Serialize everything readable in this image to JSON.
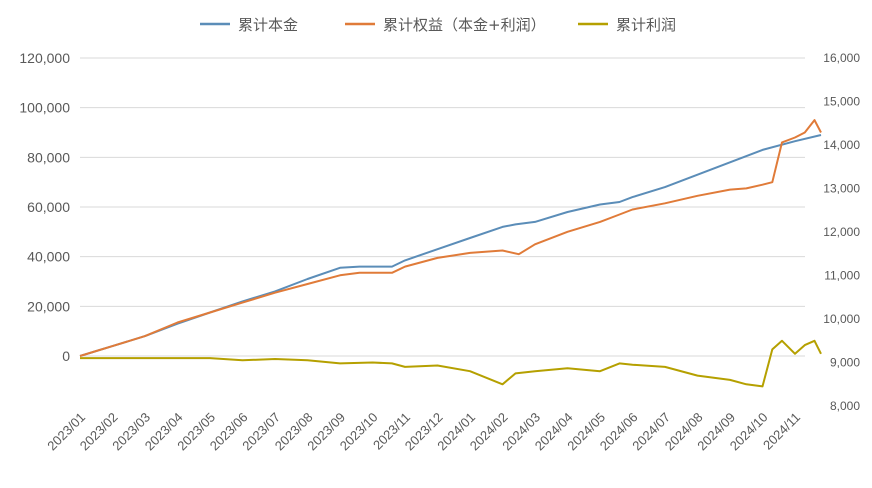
{
  "chart_data": {
    "type": "line",
    "title": "",
    "xlabel": "",
    "ylabel": "",
    "legend_position": "top",
    "grid": "horizontal",
    "x": [
      "2023/01",
      "2023/02",
      "2023/03",
      "2023/04",
      "2023/05",
      "2023/06",
      "2023/07",
      "2023/08",
      "2023/09",
      "2023/10",
      "2023/11",
      "2023/12",
      "2024/01",
      "2024/02",
      "2024/03",
      "2024/04",
      "2024/05",
      "2024/06",
      "2024/07",
      "2024/08",
      "2024/09",
      "2024/10",
      "2024/11"
    ],
    "y_left": {
      "min": 0,
      "max": 120000,
      "ticks": [
        "0",
        "20,000",
        "40,000",
        "60,000",
        "80,000",
        "100,000",
        "120,000"
      ]
    },
    "y_right": {
      "min": 8000,
      "max": 16000,
      "ticks": [
        "8,000",
        "9,000",
        "10,000",
        "11,000",
        "12,000",
        "13,000",
        "14,000",
        "15,000",
        "16,000"
      ]
    },
    "series": [
      {
        "name": "累计本金",
        "axis": "left",
        "color": "#5b8db8",
        "points": [
          [
            0,
            0
          ],
          [
            0.5,
            2000
          ],
          [
            1,
            4000
          ],
          [
            2,
            8000
          ],
          [
            3,
            13000
          ],
          [
            4,
            17500
          ],
          [
            5,
            22000
          ],
          [
            6,
            26000
          ],
          [
            7,
            31000
          ],
          [
            8,
            35500
          ],
          [
            8.6,
            36000
          ],
          [
            9.6,
            36000
          ],
          [
            10,
            38500
          ],
          [
            11,
            43000
          ],
          [
            12,
            47500
          ],
          [
            13,
            52000
          ],
          [
            13.4,
            53000
          ],
          [
            14,
            54000
          ],
          [
            15,
            58000
          ],
          [
            16,
            61000
          ],
          [
            16.6,
            62000
          ],
          [
            17,
            64000
          ],
          [
            18,
            68000
          ],
          [
            19,
            73000
          ],
          [
            20,
            78000
          ],
          [
            21,
            83000
          ],
          [
            22,
            86500
          ],
          [
            22.8,
            89000
          ]
        ]
      },
      {
        "name": "累计权益（本金+利润）",
        "axis": "left",
        "color": "#e07b39",
        "points": [
          [
            0,
            0
          ],
          [
            0.5,
            2000
          ],
          [
            1,
            4000
          ],
          [
            2,
            8000
          ],
          [
            3,
            13500
          ],
          [
            4,
            17500
          ],
          [
            5,
            21500
          ],
          [
            6,
            25500
          ],
          [
            7,
            29000
          ],
          [
            8,
            32500
          ],
          [
            8.6,
            33500
          ],
          [
            9.6,
            33500
          ],
          [
            10,
            36000
          ],
          [
            11,
            39500
          ],
          [
            12,
            41500
          ],
          [
            13,
            42500
          ],
          [
            13.5,
            41000
          ],
          [
            14,
            45000
          ],
          [
            15,
            50000
          ],
          [
            16,
            54000
          ],
          [
            16.6,
            57000
          ],
          [
            17,
            59000
          ],
          [
            18,
            61500
          ],
          [
            19,
            64500
          ],
          [
            20,
            67000
          ],
          [
            20.5,
            67500
          ],
          [
            21,
            69000
          ],
          [
            21.3,
            70000
          ],
          [
            21.6,
            86000
          ],
          [
            22,
            88000
          ],
          [
            22.3,
            90000
          ],
          [
            22.6,
            95000
          ],
          [
            22.8,
            90000
          ]
        ]
      },
      {
        "name": "累计利润",
        "axis": "right",
        "color": "#b5a000",
        "points": [
          [
            0,
            9100
          ],
          [
            1,
            9100
          ],
          [
            2,
            9100
          ],
          [
            3,
            9100
          ],
          [
            4,
            9100
          ],
          [
            5,
            9050
          ],
          [
            6,
            9080
          ],
          [
            7,
            9050
          ],
          [
            8,
            8980
          ],
          [
            9,
            9000
          ],
          [
            9.6,
            8980
          ],
          [
            10,
            8900
          ],
          [
            11,
            8930
          ],
          [
            12,
            8800
          ],
          [
            13,
            8500
          ],
          [
            13.4,
            8750
          ],
          [
            14,
            8800
          ],
          [
            15,
            8870
          ],
          [
            16,
            8800
          ],
          [
            16.6,
            8980
          ],
          [
            17,
            8950
          ],
          [
            18,
            8900
          ],
          [
            19,
            8700
          ],
          [
            20,
            8600
          ],
          [
            20.5,
            8500
          ],
          [
            21,
            8450
          ],
          [
            21.3,
            9300
          ],
          [
            21.6,
            9500
          ],
          [
            22,
            9200
          ],
          [
            22.3,
            9400
          ],
          [
            22.6,
            9500
          ],
          [
            22.8,
            9200
          ]
        ]
      }
    ]
  }
}
